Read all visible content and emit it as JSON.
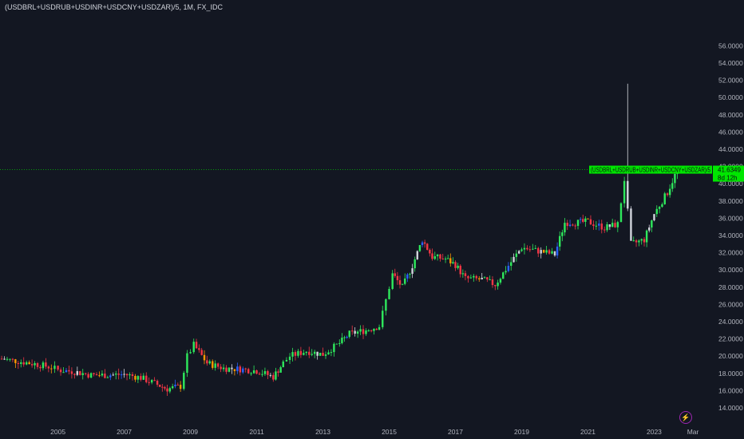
{
  "header": {
    "title": "(USDBRL+USDRUB+USDINR+USDCNY+USDZAR)/5, 1M, FX_IDC"
  },
  "price_tag": {
    "symbol": "(USDBRL+USDRUB+USDINR+USDCNY+USDZAR)/5",
    "price": "41.6349",
    "countdown": "8d 12h"
  },
  "icons": {
    "bolt": "lightning-bolt-icon"
  },
  "colors": {
    "up": "#2ee85c",
    "down": "#f23645",
    "up_alt": "#2962ff",
    "down_alt": "#ff9800",
    "neutral": "#d1d4dc",
    "tag": "#00e600",
    "background": "#131722"
  },
  "chart_data": {
    "type": "candlestick",
    "interval": "1M",
    "ylim": [
      13,
      56
    ],
    "y_ticks": [
      "14.0000",
      "16.0000",
      "18.0000",
      "20.0000",
      "22.0000",
      "24.0000",
      "26.0000",
      "28.0000",
      "30.0000",
      "32.0000",
      "34.0000",
      "36.0000",
      "38.0000",
      "40.0000",
      "42.0000",
      "44.0000",
      "46.0000",
      "48.0000",
      "50.0000",
      "52.0000",
      "54.0000",
      "56.0000"
    ],
    "x_ticks": [
      "2005",
      "2007",
      "2009",
      "2011",
      "2013",
      "2015",
      "2017",
      "2019",
      "2021",
      "2023",
      "Mar"
    ],
    "x_tick_years": [
      2005,
      2007,
      2009,
      2011,
      2013,
      2015,
      2017,
      2019,
      2021,
      2023,
      2024.17
    ],
    "xlim": [
      2003.25,
      2024.7
    ],
    "current_price": 41.6349,
    "series": [
      {
        "t": 2003.3,
        "c": 19.7
      },
      {
        "t": 2003.8,
        "c": 19.4
      },
      {
        "t": 2004.3,
        "c": 19.1
      },
      {
        "t": 2004.8,
        "c": 18.7
      },
      {
        "t": 2005.0,
        "c": 18.4
      },
      {
        "t": 2005.5,
        "c": 18.2
      },
      {
        "t": 2006.0,
        "c": 17.8
      },
      {
        "t": 2006.5,
        "c": 17.8
      },
      {
        "t": 2007.0,
        "c": 17.9
      },
      {
        "t": 2007.5,
        "c": 17.5
      },
      {
        "t": 2008.0,
        "c": 16.7
      },
      {
        "t": 2008.3,
        "c": 16.2
      },
      {
        "t": 2008.7,
        "c": 16.5
      },
      {
        "t": 2008.9,
        "c": 20.0
      },
      {
        "t": 2009.1,
        "c": 21.3
      },
      {
        "t": 2009.5,
        "c": 19.2
      },
      {
        "t": 2010.0,
        "c": 18.6
      },
      {
        "t": 2010.5,
        "c": 18.5
      },
      {
        "t": 2011.0,
        "c": 18.3
      },
      {
        "t": 2011.5,
        "c": 17.6
      },
      {
        "t": 2011.8,
        "c": 19.2
      },
      {
        "t": 2012.0,
        "c": 20.0
      },
      {
        "t": 2012.5,
        "c": 20.6
      },
      {
        "t": 2013.0,
        "c": 20.2
      },
      {
        "t": 2013.5,
        "c": 21.5
      },
      {
        "t": 2013.8,
        "c": 22.6
      },
      {
        "t": 2014.3,
        "c": 23.0
      },
      {
        "t": 2014.7,
        "c": 23.5
      },
      {
        "t": 2014.9,
        "c": 26.5
      },
      {
        "t": 2015.1,
        "c": 29.5
      },
      {
        "t": 2015.4,
        "c": 28.0
      },
      {
        "t": 2015.7,
        "c": 30.5
      },
      {
        "t": 2016.0,
        "c": 33.5
      },
      {
        "t": 2016.3,
        "c": 31.5
      },
      {
        "t": 2016.7,
        "c": 31.3
      },
      {
        "t": 2017.0,
        "c": 30.6
      },
      {
        "t": 2017.3,
        "c": 29.0
      },
      {
        "t": 2017.8,
        "c": 28.9
      },
      {
        "t": 2018.2,
        "c": 28.3
      },
      {
        "t": 2018.6,
        "c": 30.5
      },
      {
        "t": 2019.0,
        "c": 32.6
      },
      {
        "t": 2019.5,
        "c": 32.2
      },
      {
        "t": 2020.0,
        "c": 31.8
      },
      {
        "t": 2020.3,
        "c": 35.5
      },
      {
        "t": 2020.7,
        "c": 35.5
      },
      {
        "t": 2021.0,
        "c": 35.6
      },
      {
        "t": 2021.5,
        "c": 34.9
      },
      {
        "t": 2021.9,
        "c": 35.3
      },
      {
        "t": 2022.1,
        "c": 40.5
      },
      {
        "t": 2022.3,
        "c": 33.0
      },
      {
        "t": 2022.7,
        "c": 33.5
      },
      {
        "t": 2023.0,
        "c": 36.5
      },
      {
        "t": 2023.4,
        "c": 39.0
      },
      {
        "t": 2023.7,
        "c": 41.6349
      }
    ]
  }
}
